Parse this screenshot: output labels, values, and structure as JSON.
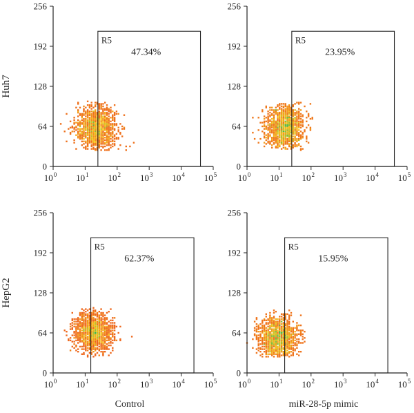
{
  "figure": {
    "row_labels": [
      "Huh7",
      "HepG2"
    ],
    "column_labels": [
      "Control",
      "miR-28-5p mimic"
    ],
    "colors": {
      "density_low": "#e8321e",
      "density_mid": "#f7c21a",
      "density_high": "#3bb54a",
      "axis": "#222222"
    }
  },
  "chart_data": [
    {
      "type": "scatter",
      "panel": "Huh7 / Control",
      "xscale": "log",
      "xlim": [
        1,
        100000
      ],
      "xticks": [
        "10",
        "10",
        "10",
        "10",
        "10",
        "10"
      ],
      "xtick_exponents": [
        "0",
        "1",
        "2",
        "3",
        "4",
        "5"
      ],
      "ylim": [
        0,
        256
      ],
      "yticks": [
        0,
        64,
        128,
        192,
        256
      ],
      "gate": {
        "label": "R5",
        "percent": "47.34%",
        "x_range": [
          25,
          40000
        ],
        "y_range": [
          0,
          216
        ]
      },
      "population": {
        "center": [
          22,
          62
        ],
        "spread_log_x": 0.32,
        "spread_y": 17,
        "n": 1300
      }
    },
    {
      "type": "scatter",
      "panel": "Huh7 / miR-28-5p mimic",
      "xscale": "log",
      "xlim": [
        1,
        100000
      ],
      "xticks": [
        "10",
        "10",
        "10",
        "10",
        "10",
        "10"
      ],
      "xtick_exponents": [
        "0",
        "1",
        "2",
        "3",
        "4",
        "5"
      ],
      "ylim": [
        0,
        256
      ],
      "yticks": [
        0,
        64,
        128,
        192,
        256
      ],
      "gate": {
        "label": "R5",
        "percent": "23.95%",
        "x_range": [
          25,
          40000
        ],
        "y_range": [
          0,
          216
        ]
      },
      "population": {
        "center": [
          15,
          62
        ],
        "spread_log_x": 0.3,
        "spread_y": 18,
        "n": 1300
      }
    },
    {
      "type": "scatter",
      "panel": "HepG2 / Control",
      "xscale": "log",
      "xlim": [
        1,
        100000
      ],
      "xticks": [
        "10",
        "10",
        "10",
        "10",
        "10",
        "10"
      ],
      "xtick_exponents": [
        "0",
        "1",
        "2",
        "3",
        "4",
        "5"
      ],
      "ylim": [
        0,
        256
      ],
      "yticks": [
        0,
        64,
        128,
        192,
        256
      ],
      "gate": {
        "label": "R5",
        "percent": "62.37%",
        "x_range": [
          15,
          25000
        ],
        "y_range": [
          0,
          216
        ]
      },
      "population": {
        "center": [
          18,
          65
        ],
        "spread_log_x": 0.3,
        "spread_y": 16,
        "n": 1400
      }
    },
    {
      "type": "scatter",
      "panel": "HepG2 / miR-28-5p mimic",
      "xscale": "log",
      "xlim": [
        1,
        100000
      ],
      "xticks": [
        "10",
        "10",
        "10",
        "10",
        "10",
        "10"
      ],
      "xtick_exponents": [
        "0",
        "1",
        "2",
        "3",
        "4",
        "5"
      ],
      "ylim": [
        0,
        256
      ],
      "yticks": [
        0,
        64,
        128,
        192,
        256
      ],
      "gate": {
        "label": "R5",
        "percent": "15.95%",
        "x_range": [
          15,
          25000
        ],
        "y_range": [
          0,
          216
        ]
      },
      "population": {
        "center": [
          9,
          55
        ],
        "spread_log_x": 0.3,
        "spread_y": 17,
        "n": 1400
      }
    }
  ]
}
